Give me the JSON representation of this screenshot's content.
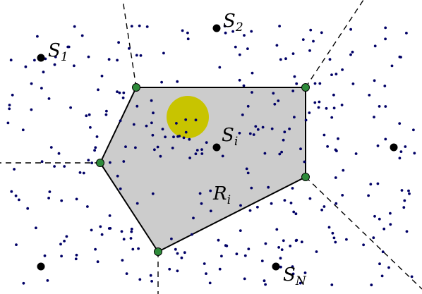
{
  "diagram": {
    "colors": {
      "background": "#ffffff",
      "region_fill": "#cccccc",
      "region_stroke": "#000000",
      "vertex_fill": "#2e8b3a",
      "sample_fill": "#000066",
      "site_fill": "#000000",
      "disk_fill": "#c8c400",
      "boundary_stroke": "#000000"
    },
    "sites": [
      {
        "id": "s1",
        "label_main": "S",
        "label_sub": "1"
      },
      {
        "id": "s2",
        "label_main": "S",
        "label_sub": "2"
      },
      {
        "id": "si",
        "label_main": "S",
        "label_sub": "i"
      },
      {
        "id": "sn",
        "label_main": "S",
        "label_sub": "N"
      },
      {
        "id": "s5",
        "label_main": "",
        "label_sub": ""
      },
      {
        "id": "s6",
        "label_main": "",
        "label_sub": ""
      }
    ],
    "region_label": {
      "main": "R",
      "sub": "i"
    }
  }
}
